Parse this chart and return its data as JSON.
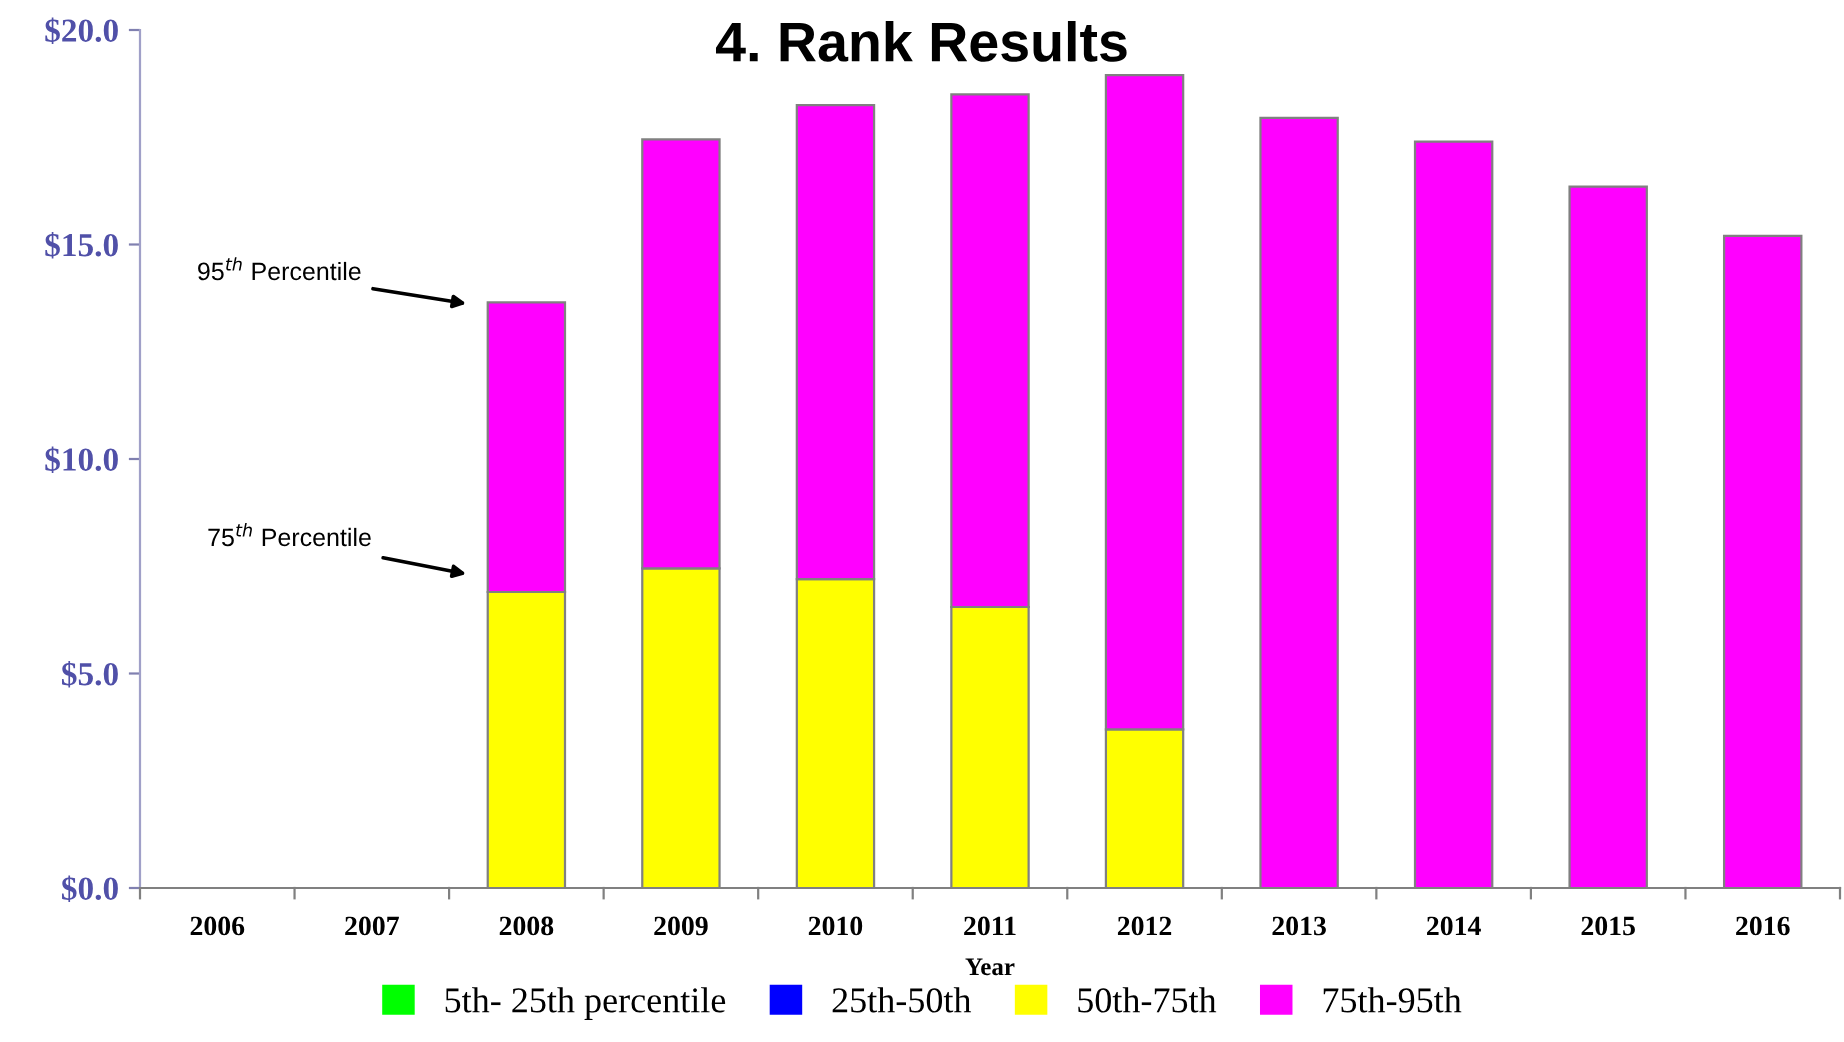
{
  "chart_data": {
    "type": "bar",
    "title": "4. Rank Results",
    "xlabel": "Year",
    "categories": [
      "2006",
      "2007",
      "2008",
      "2009",
      "2010",
      "2011",
      "2012",
      "2013",
      "2014",
      "2015",
      "2016"
    ],
    "stacked": true,
    "series": [
      {
        "name": "5th- 25th percentile",
        "color": "#00ff00",
        "values": [
          null,
          null,
          null,
          null,
          null,
          null,
          null,
          null,
          null,
          null,
          null
        ]
      },
      {
        "name": "25th-50th",
        "color": "#0000ff",
        "values": [
          null,
          null,
          null,
          null,
          null,
          null,
          null,
          null,
          null,
          null,
          null
        ]
      },
      {
        "name": "50th-75th",
        "color": "#ffff00",
        "values": [
          null,
          null,
          6.9,
          7.45,
          7.2,
          6.55,
          3.7,
          null,
          null,
          null,
          null
        ]
      },
      {
        "name": "75th-95th",
        "color": "#ff00ff",
        "values": [
          null,
          null,
          6.75,
          10.0,
          11.05,
          11.95,
          15.25,
          17.95,
          17.4,
          16.35,
          15.2
        ]
      }
    ],
    "ylim": [
      0,
      20
    ],
    "yticks": [
      {
        "value": 0,
        "label": "$0.0"
      },
      {
        "value": 5,
        "label": "$5.0"
      },
      {
        "value": 10,
        "label": "$10.0"
      },
      {
        "value": 15,
        "label": "$15.0"
      },
      {
        "value": 20,
        "label": "$20.0"
      }
    ],
    "annotations": [
      "95$^{th}$ Percentile",
      "75$^{th}$ Percentile"
    ],
    "grid": false,
    "legend": "bottom"
  }
}
